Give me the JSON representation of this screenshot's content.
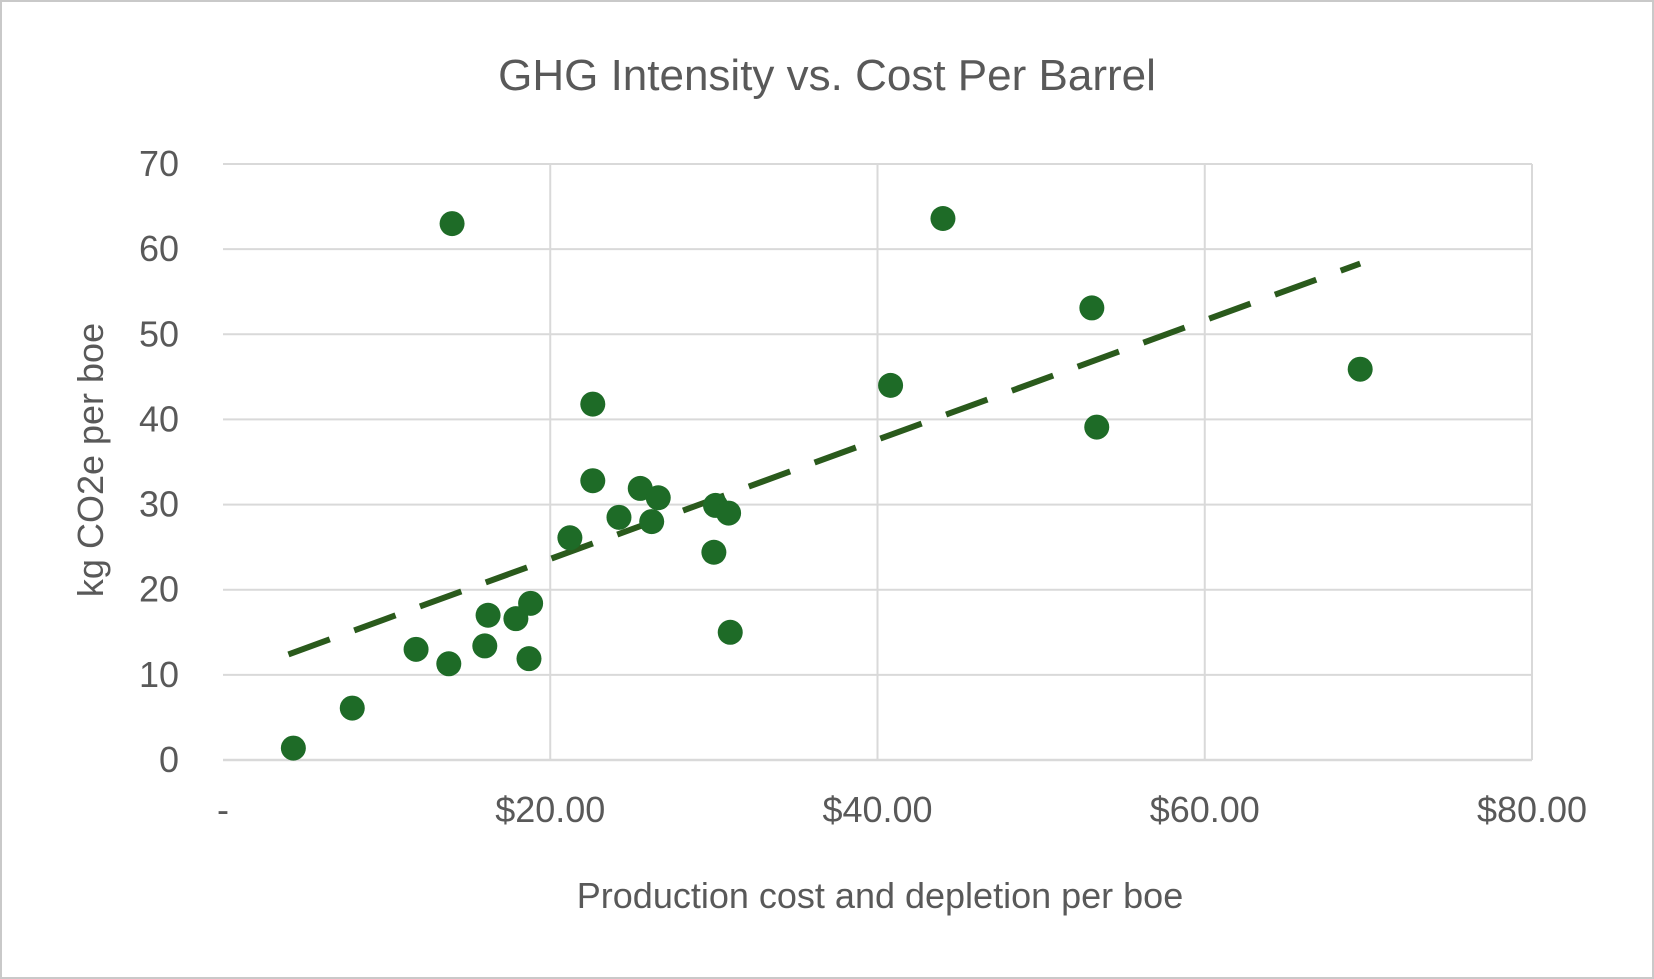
{
  "chart_data": {
    "type": "scatter",
    "title": "GHG Intensity vs. Cost Per Barrel",
    "xlabel": "Production cost and depletion per boe",
    "ylabel": "kg CO2e per boe",
    "xlim": [
      0,
      80
    ],
    "ylim": [
      0,
      70
    ],
    "x_ticks": [
      {
        "value": 0,
        "label": "-"
      },
      {
        "value": 20,
        "label": "$20.00"
      },
      {
        "value": 40,
        "label": "$40.00"
      },
      {
        "value": 60,
        "label": "$60.00"
      },
      {
        "value": 80,
        "label": "$80.00"
      }
    ],
    "y_ticks": [
      {
        "value": 0,
        "label": "0"
      },
      {
        "value": 10,
        "label": "10"
      },
      {
        "value": 20,
        "label": "20"
      },
      {
        "value": 30,
        "label": "30"
      },
      {
        "value": 40,
        "label": "40"
      },
      {
        "value": 50,
        "label": "50"
      },
      {
        "value": 60,
        "label": "60"
      },
      {
        "value": 70,
        "label": "70"
      }
    ],
    "grid": true,
    "legend": "none",
    "points": [
      {
        "x": 4.3,
        "y": 1.4
      },
      {
        "x": 7.9,
        "y": 6.1
      },
      {
        "x": 11.8,
        "y": 13.0
      },
      {
        "x": 13.8,
        "y": 11.3
      },
      {
        "x": 14.0,
        "y": 63.0
      },
      {
        "x": 16.0,
        "y": 13.4
      },
      {
        "x": 16.2,
        "y": 17.0
      },
      {
        "x": 17.9,
        "y": 16.6
      },
      {
        "x": 18.7,
        "y": 11.9
      },
      {
        "x": 18.8,
        "y": 18.4
      },
      {
        "x": 21.2,
        "y": 26.1
      },
      {
        "x": 22.6,
        "y": 41.8
      },
      {
        "x": 22.6,
        "y": 32.8
      },
      {
        "x": 24.2,
        "y": 28.5
      },
      {
        "x": 25.5,
        "y": 31.9
      },
      {
        "x": 26.2,
        "y": 28.0
      },
      {
        "x": 26.6,
        "y": 30.8
      },
      {
        "x": 30.0,
        "y": 24.4
      },
      {
        "x": 30.1,
        "y": 29.9
      },
      {
        "x": 30.9,
        "y": 29.0
      },
      {
        "x": 31.0,
        "y": 15.0
      },
      {
        "x": 40.8,
        "y": 44.0
      },
      {
        "x": 44.0,
        "y": 63.6
      },
      {
        "x": 53.1,
        "y": 53.1
      },
      {
        "x": 53.4,
        "y": 39.1
      },
      {
        "x": 69.5,
        "y": 45.9
      }
    ],
    "trendline": {
      "style": "dashed",
      "color": "#2a5a1c",
      "points": [
        {
          "x": 4.0,
          "y": 12.4
        },
        {
          "x": 69.5,
          "y": 58.3
        }
      ]
    },
    "marker_color": "#1e6b27"
  }
}
